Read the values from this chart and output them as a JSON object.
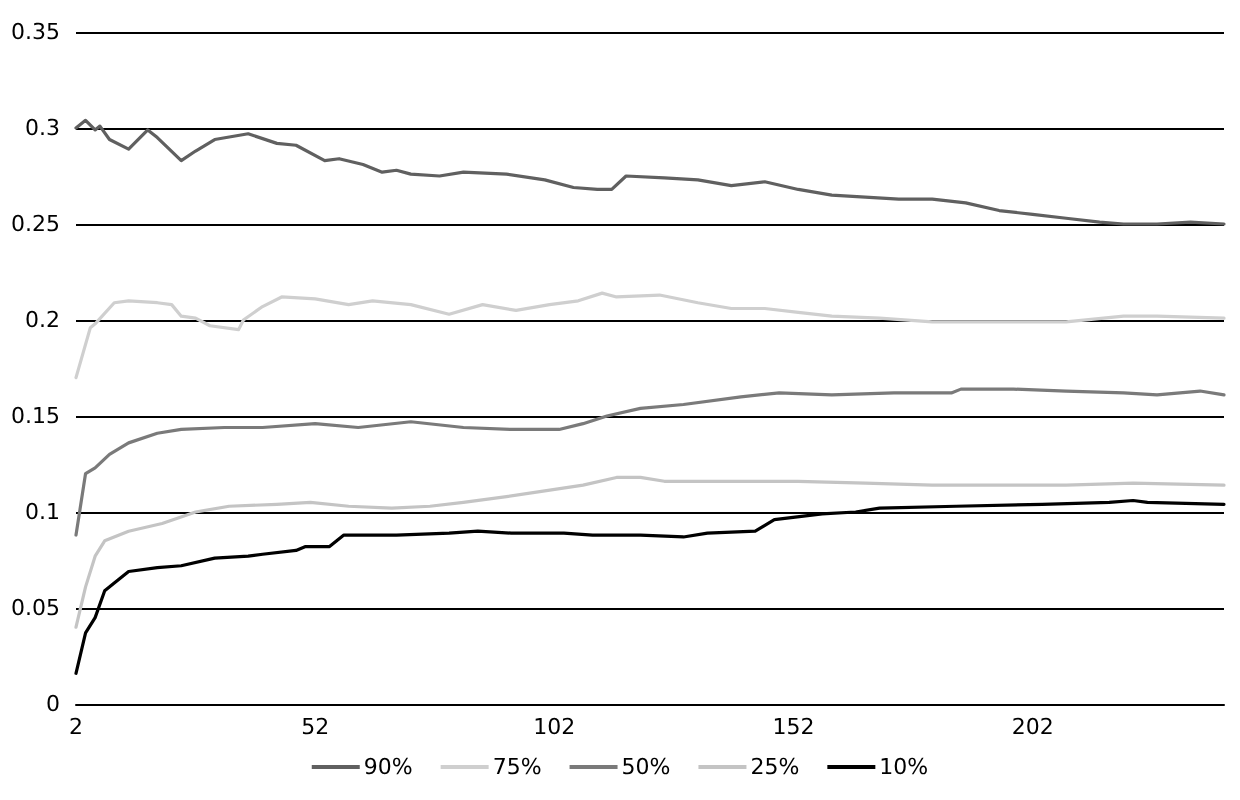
{
  "chart_data": {
    "type": "line",
    "xlim": [
      2,
      242
    ],
    "xticks": [
      2,
      52,
      102,
      152,
      202
    ],
    "ylim": [
      0,
      0.35
    ],
    "yticks": [
      0,
      0.05,
      0.1,
      0.15,
      0.2,
      0.25,
      0.3,
      0.35
    ],
    "grid": "y",
    "legend": "bottom",
    "marker": "none",
    "line_style": "solid",
    "series": [
      {
        "name": "90%",
        "color": "#606060",
        "x": [
          2,
          4,
          6,
          7,
          9,
          13,
          17,
          19,
          24,
          27,
          31,
          38,
          44,
          48,
          54,
          57,
          62,
          66,
          69,
          72,
          78,
          83,
          92,
          100,
          106,
          111,
          114,
          117,
          125,
          132,
          139,
          146,
          153,
          160,
          167,
          174,
          181,
          188,
          195,
          202,
          209,
          216,
          221,
          228,
          235,
          242
        ],
        "values": [
          0.3,
          0.304,
          0.299,
          0.301,
          0.294,
          0.289,
          0.299,
          0.295,
          0.283,
          0.288,
          0.294,
          0.297,
          0.292,
          0.291,
          0.283,
          0.284,
          0.281,
          0.277,
          0.278,
          0.276,
          0.275,
          0.277,
          0.276,
          0.273,
          0.269,
          0.268,
          0.268,
          0.275,
          0.274,
          0.273,
          0.27,
          0.272,
          0.268,
          0.265,
          0.264,
          0.263,
          0.263,
          0.261,
          0.257,
          0.255,
          0.253,
          0.251,
          0.25,
          0.25,
          0.251,
          0.25
        ]
      },
      {
        "name": "75%",
        "color": "#cfcfcf",
        "x": [
          2,
          5,
          6,
          10,
          13,
          19,
          22,
          24,
          27,
          30,
          36,
          37,
          41,
          45,
          52,
          59,
          64,
          72,
          80,
          87,
          94,
          101,
          107,
          112,
          115,
          124,
          132,
          139,
          146,
          153,
          160,
          170,
          181,
          195,
          209,
          221,
          228,
          242
        ],
        "values": [
          0.17,
          0.196,
          0.198,
          0.209,
          0.21,
          0.209,
          0.208,
          0.202,
          0.201,
          0.197,
          0.195,
          0.2,
          0.207,
          0.212,
          0.211,
          0.208,
          0.21,
          0.208,
          0.203,
          0.208,
          0.205,
          0.208,
          0.21,
          0.214,
          0.212,
          0.213,
          0.209,
          0.206,
          0.206,
          0.204,
          0.202,
          0.201,
          0.199,
          0.199,
          0.199,
          0.202,
          0.202,
          0.201
        ]
      },
      {
        "name": "50%",
        "color": "#7a7a7a",
        "x": [
          2,
          4,
          6,
          9,
          13,
          19,
          24,
          33,
          41,
          52,
          61,
          72,
          83,
          93,
          103,
          108,
          113,
          120,
          129,
          141,
          149,
          160,
          173,
          185,
          187,
          198,
          209,
          221,
          228,
          237,
          242
        ],
        "values": [
          0.088,
          0.12,
          0.123,
          0.13,
          0.136,
          0.141,
          0.143,
          0.144,
          0.144,
          0.146,
          0.144,
          0.147,
          0.144,
          0.143,
          0.143,
          0.146,
          0.15,
          0.154,
          0.156,
          0.16,
          0.162,
          0.161,
          0.162,
          0.162,
          0.164,
          0.164,
          0.163,
          0.162,
          0.161,
          0.163,
          0.161
        ]
      },
      {
        "name": "25%",
        "color": "#c4c4c4",
        "x": [
          2,
          4,
          6,
          8,
          13,
          20,
          27,
          34,
          44,
          51,
          59,
          68,
          76,
          83,
          92,
          100,
          108,
          115,
          120,
          125,
          139,
          153,
          167,
          181,
          195,
          209,
          223,
          242
        ],
        "values": [
          0.04,
          0.061,
          0.077,
          0.085,
          0.09,
          0.094,
          0.1,
          0.103,
          0.104,
          0.105,
          0.103,
          0.102,
          0.103,
          0.105,
          0.108,
          0.111,
          0.114,
          0.118,
          0.118,
          0.116,
          0.116,
          0.116,
          0.115,
          0.114,
          0.114,
          0.114,
          0.115,
          0.114
        ]
      },
      {
        "name": "10%",
        "color": "#000000",
        "x": [
          2,
          4,
          6,
          8,
          10,
          13,
          19,
          24,
          31,
          38,
          41,
          48,
          50,
          55,
          58,
          69,
          80,
          86,
          93,
          104,
          110,
          120,
          129,
          134,
          144,
          148,
          158,
          165,
          170,
          186,
          204,
          218,
          223,
          226,
          242
        ],
        "values": [
          0.016,
          0.037,
          0.045,
          0.059,
          0.063,
          0.069,
          0.071,
          0.072,
          0.076,
          0.077,
          0.078,
          0.08,
          0.082,
          0.082,
          0.088,
          0.088,
          0.089,
          0.09,
          0.089,
          0.089,
          0.088,
          0.088,
          0.087,
          0.089,
          0.09,
          0.096,
          0.099,
          0.1,
          0.102,
          0.103,
          0.104,
          0.105,
          0.106,
          0.105,
          0.104
        ]
      }
    ]
  }
}
